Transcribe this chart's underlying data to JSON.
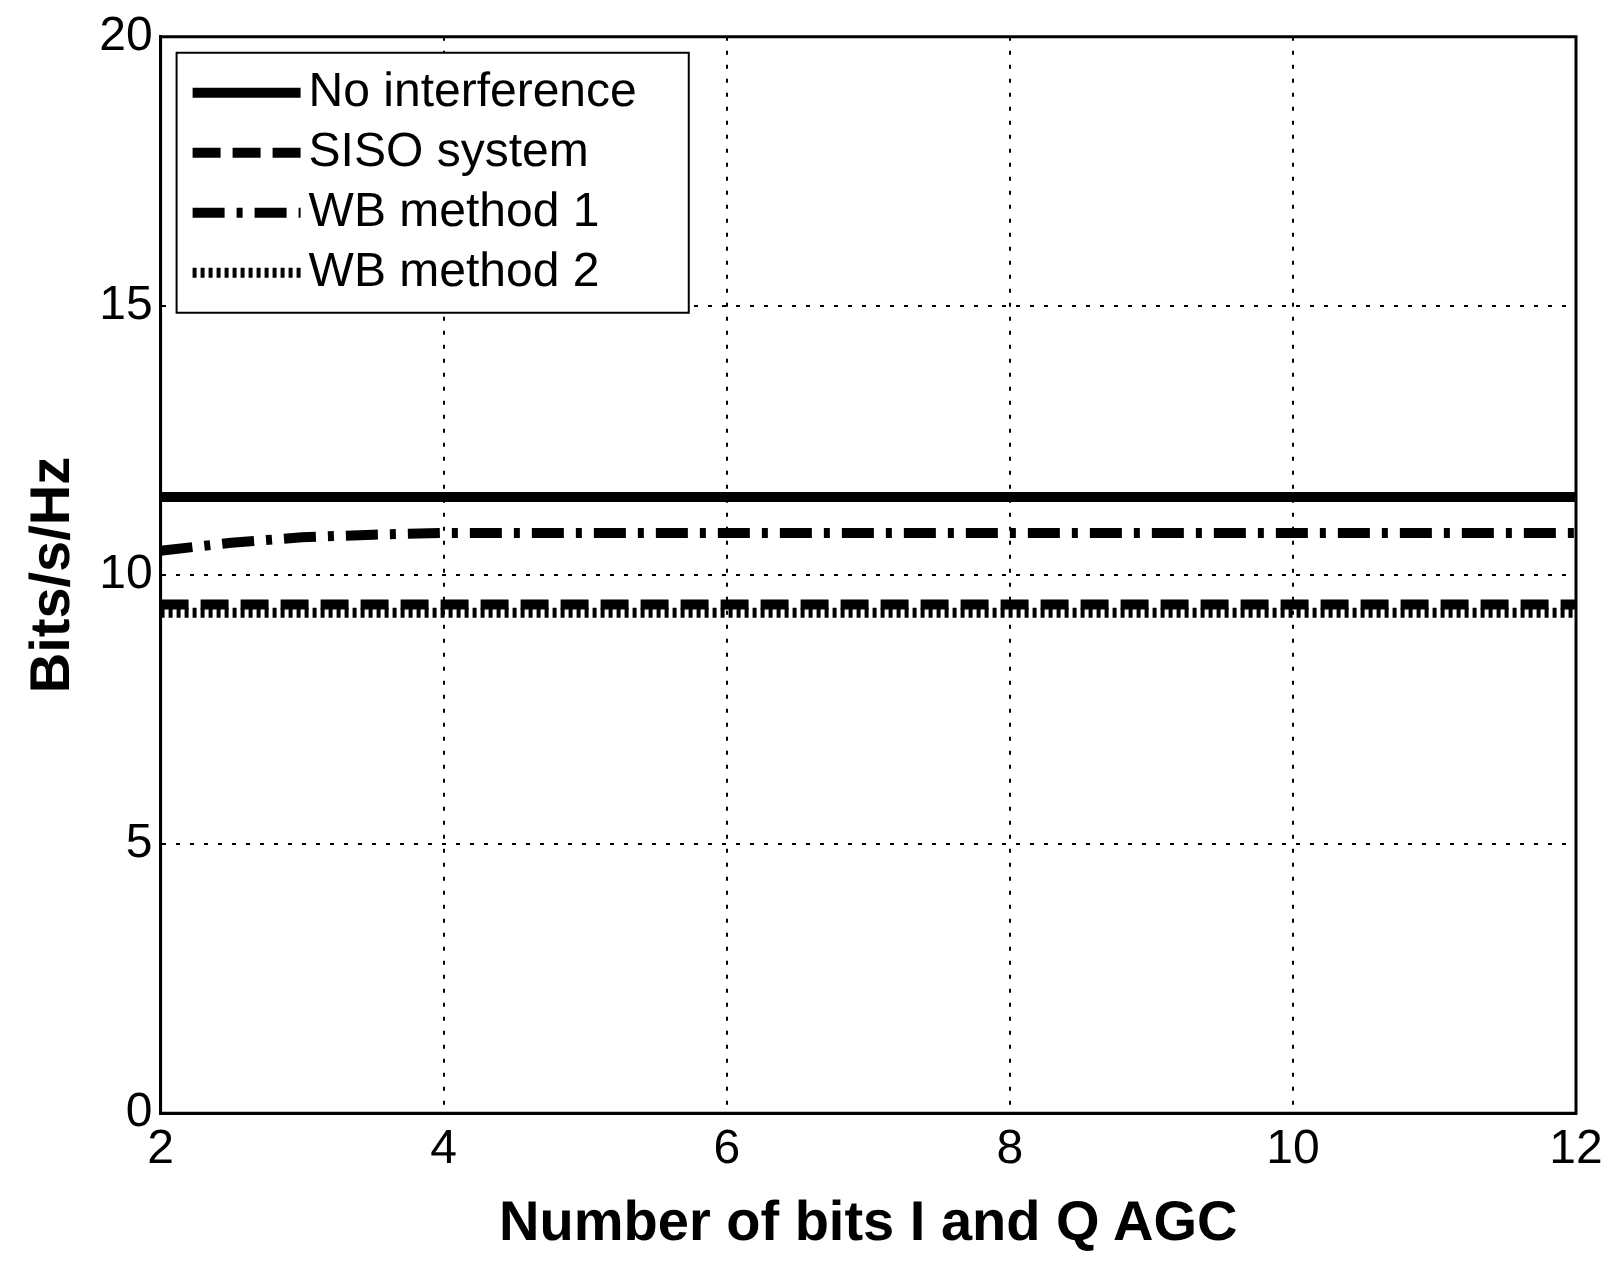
{
  "chart_data": {
    "type": "line",
    "xlabel": "Number of bits I and Q AGC",
    "ylabel": "Bits/s/Hz",
    "xlim": [
      2,
      12
    ],
    "ylim": [
      0,
      20
    ],
    "xticks": [
      2,
      4,
      6,
      8,
      10,
      12
    ],
    "yticks": [
      0,
      5,
      10,
      15,
      20
    ],
    "grid": true,
    "legend": "top left",
    "marker": "none",
    "series": [
      {
        "name": "No interference",
        "color": "#000000",
        "line_style": "solid",
        "x": [
          2,
          12
        ],
        "values": [
          11.45,
          11.45
        ]
      },
      {
        "name": "SISO system",
        "color": "#000000",
        "line_style": "dashed",
        "x": [
          2,
          12
        ],
        "values": [
          9.45,
          9.45
        ]
      },
      {
        "name": "WB method 1",
        "color": "#000000",
        "line_style": "dashdot",
        "x": [
          2,
          2.5,
          3,
          3.5,
          4,
          5,
          6,
          7,
          8,
          9,
          10,
          11,
          12
        ],
        "values": [
          10.45,
          10.6,
          10.7,
          10.75,
          10.78,
          10.78,
          10.78,
          10.78,
          10.78,
          10.78,
          10.78,
          10.78,
          10.78
        ]
      },
      {
        "name": "WB method 2",
        "color": "#000000",
        "line_style": "dotted",
        "x": [
          2,
          12
        ],
        "values": [
          9.3,
          9.3
        ]
      }
    ]
  }
}
